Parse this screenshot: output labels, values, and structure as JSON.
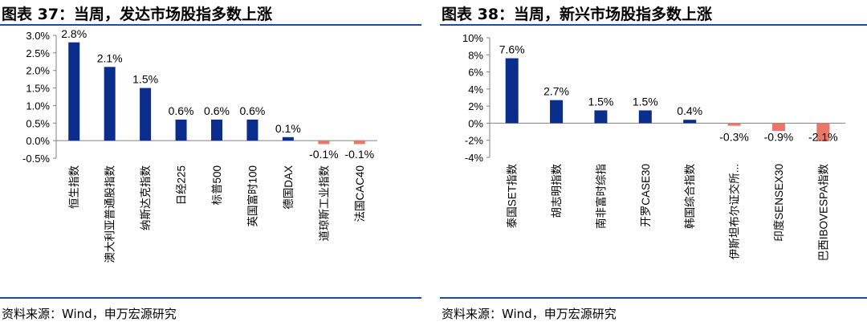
{
  "chart_data": [
    {
      "type": "bar",
      "title": "图表 37：当周，发达市场股指多数上涨",
      "source": "资料来源：Wind，申万宏源研究",
      "categories": [
        "恒生指数",
        "澳大利亚普通股指数",
        "纳斯达克指数",
        "日经225",
        "标普500",
        "英国富时100",
        "德国DAX",
        "道琼斯工业指数",
        "法国CAC40"
      ],
      "values": [
        2.8,
        2.1,
        1.5,
        0.6,
        0.6,
        0.6,
        0.1,
        -0.1,
        -0.1
      ],
      "value_labels": [
        "2.8%",
        "2.1%",
        "1.5%",
        "0.6%",
        "0.6%",
        "0.6%",
        "0.1%",
        "-0.1%",
        "-0.1%"
      ],
      "y_ticks": [
        "3.0%",
        "2.5%",
        "2.0%",
        "1.5%",
        "1.0%",
        "0.5%",
        "0.0%",
        "-0.5%"
      ],
      "ylim": [
        -0.5,
        3.0
      ],
      "grid": false,
      "colors": {
        "positive": "#0b2e8c",
        "negative": "#e9786b",
        "axis": "#808080"
      }
    },
    {
      "type": "bar",
      "title": "图表 38：当周，新兴市场股指多数上涨",
      "source": "资料来源：Wind，申万宏源研究",
      "categories": [
        "泰国SET指数",
        "胡志明指数",
        "南非富时综指",
        "开罗CASE30",
        "韩国综合指数",
        "伊斯坦布尔证交所...",
        "印度SENSEX30",
        "巴西IBOVESPA指数"
      ],
      "values": [
        7.6,
        2.7,
        1.5,
        1.5,
        0.4,
        -0.3,
        -0.9,
        -2.1
      ],
      "value_labels": [
        "7.6%",
        "2.7%",
        "1.5%",
        "1.5%",
        "0.4%",
        "-0.3%",
        "-0.9%",
        "-2.1%"
      ],
      "y_ticks": [
        "10%",
        "8%",
        "6%",
        "4%",
        "2%",
        "0%",
        "-2%",
        "-4%"
      ],
      "ylim": [
        -4,
        10
      ],
      "grid": false,
      "colors": {
        "positive": "#0b2e8c",
        "negative": "#e9786b",
        "axis": "#808080"
      }
    }
  ]
}
